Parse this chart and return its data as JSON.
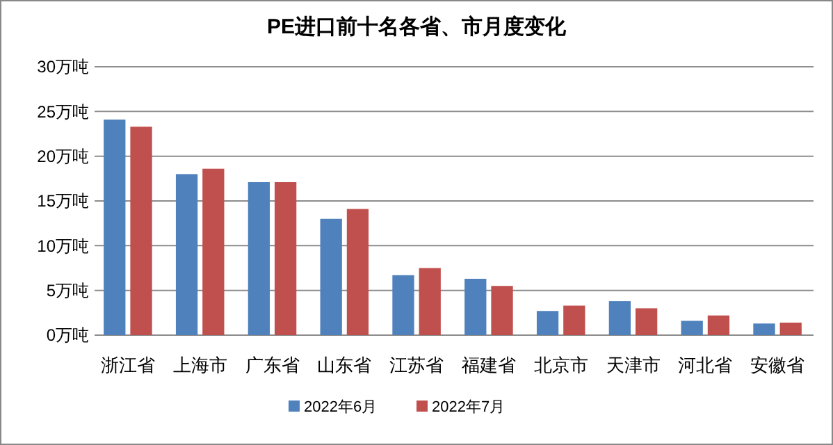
{
  "chart_data": {
    "type": "bar",
    "title": "PE进口前十名各省、市月度变化",
    "categories": [
      "浙江省",
      "上海市",
      "广东省",
      "山东省",
      "江苏省",
      "福建省",
      "北京市",
      "天津市",
      "河北省",
      "安徽省"
    ],
    "series": [
      {
        "name": "2022年6月",
        "color": "#4f81bd",
        "values": [
          24.1,
          18.0,
          17.1,
          13.0,
          6.7,
          6.3,
          2.7,
          3.8,
          1.6,
          1.3
        ]
      },
      {
        "name": "2022年7月",
        "color": "#c0504d",
        "values": [
          23.3,
          18.6,
          17.1,
          14.1,
          7.5,
          5.5,
          3.3,
          3.0,
          2.2,
          1.4
        ]
      }
    ],
    "ylim": [
      0,
      30
    ],
    "yticks": [
      {
        "value": 0,
        "label": "0万吨"
      },
      {
        "value": 5,
        "label": "5万吨"
      },
      {
        "value": 10,
        "label": "10万吨"
      },
      {
        "value": 15,
        "label": "15万吨"
      },
      {
        "value": 20,
        "label": "20万吨"
      },
      {
        "value": 25,
        "label": "25万吨"
      },
      {
        "value": 30,
        "label": "30万吨"
      }
    ],
    "grid": "y",
    "legend": "bottom"
  }
}
